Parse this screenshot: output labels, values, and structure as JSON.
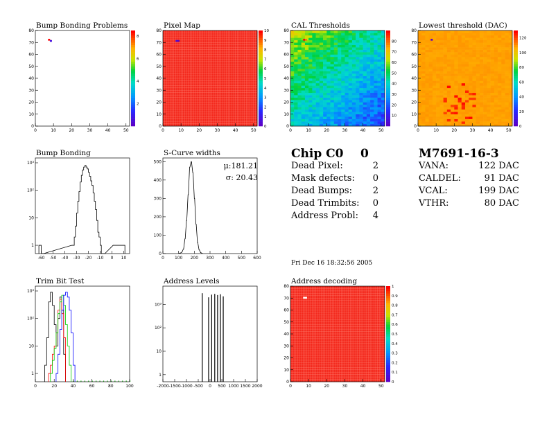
{
  "chart_data": [
    {
      "type": "heatmap",
      "title": "Bump Bonding Problems",
      "xlim": [
        0,
        52
      ],
      "ylim": [
        0,
        80
      ],
      "x_ticks": [
        "0",
        "10",
        "20",
        "30",
        "40",
        "50"
      ],
      "y_ticks": [
        "0",
        "10",
        "20",
        "30",
        "40",
        "50",
        "60",
        "70",
        "80"
      ],
      "z_ticks": [
        "2",
        "4",
        "6",
        "8"
      ],
      "z_range": [
        0,
        8.5
      ],
      "background": "empty",
      "cells": [
        [
          7,
          72,
          8.5
        ],
        [
          8,
          71,
          0.5
        ]
      ]
    },
    {
      "type": "heatmap",
      "title": "Pixel Map",
      "xlim": [
        0,
        52
      ],
      "ylim": [
        0,
        80
      ],
      "x_ticks": [
        "0",
        "10",
        "20",
        "30",
        "40",
        "50"
      ],
      "y_ticks": [
        "0",
        "10",
        "20",
        "30",
        "40",
        "50",
        "60",
        "70",
        "80"
      ],
      "z_ticks": [
        "0",
        "1",
        "2",
        "3",
        "4",
        "5",
        "6",
        "7",
        "8",
        "9",
        "10"
      ],
      "z_range": [
        0,
        10
      ],
      "background": "uniform-max",
      "cells": [
        [
          7,
          71,
          0.5
        ],
        [
          8,
          71,
          0
        ]
      ]
    },
    {
      "type": "heatmap",
      "title": "CAL Thresholds",
      "xlim": [
        0,
        52
      ],
      "ylim": [
        0,
        80
      ],
      "x_ticks": [
        "0",
        "10",
        "20",
        "30",
        "40",
        "50"
      ],
      "y_ticks": [
        "0",
        "10",
        "20",
        "30",
        "40",
        "50",
        "60",
        "70",
        "80"
      ],
      "z_ticks": [
        "10",
        "20",
        "30",
        "40",
        "50",
        "60",
        "70",
        "80"
      ],
      "z_range": [
        0,
        90
      ],
      "background": "gradient-top-left-high",
      "cells": [
        [
          7,
          72,
          90
        ],
        [
          8,
          72,
          80
        ]
      ]
    },
    {
      "type": "heatmap",
      "title": "Lowest threshold (DAC)",
      "xlim": [
        0,
        52
      ],
      "ylim": [
        0,
        80
      ],
      "x_ticks": [
        "0",
        "10",
        "20",
        "30",
        "40",
        "50"
      ],
      "y_ticks": [
        "0",
        "10",
        "20",
        "30",
        "40",
        "50",
        "60",
        "70",
        "80"
      ],
      "z_ticks": [
        "0",
        "20",
        "40",
        "60",
        "80",
        "100",
        "120"
      ],
      "z_range": [
        0,
        130
      ],
      "background": "uniform-orange-with-red-speckles",
      "cells": [
        [
          7,
          72,
          0
        ]
      ]
    },
    {
      "type": "line",
      "title": "Bump Bonding",
      "xlim": [
        -65,
        15
      ],
      "ylog": true,
      "ylim": [
        0.5,
        1500
      ],
      "x_ticks": [
        "-60",
        "-50",
        "-40",
        "-30",
        "-20",
        "-10",
        "0",
        "10"
      ],
      "y_ticks": [
        "1",
        "10",
        "10²",
        "10³"
      ],
      "step": true,
      "x": [
        -62,
        -60,
        -34,
        -32,
        -31,
        -30,
        -29,
        -28,
        -27,
        -26,
        -25,
        -24,
        -23,
        -22,
        -21,
        -20,
        -19,
        -18,
        -17,
        -16,
        -15,
        -14,
        -13,
        -12,
        -11,
        -10,
        -9,
        -8,
        1,
        3,
        5,
        7,
        9
      ],
      "y": [
        1,
        0,
        1,
        2,
        5,
        15,
        40,
        90,
        200,
        350,
        550,
        700,
        800,
        700,
        600,
        450,
        320,
        220,
        150,
        80,
        40,
        20,
        8,
        3,
        2,
        1,
        0,
        0,
        1,
        1,
        1,
        1,
        1
      ]
    },
    {
      "type": "line",
      "title": "S-Curve widths",
      "xlim": [
        0,
        600
      ],
      "ylim": [
        0,
        520
      ],
      "x_ticks": [
        "0",
        "100",
        "200",
        "300",
        "400",
        "500",
        "600"
      ],
      "y_ticks": [
        "0",
        "100",
        "200",
        "300",
        "400",
        "500"
      ],
      "stats": [
        "μ:181.21",
        "σ: 20.43"
      ],
      "step": true,
      "x": [
        100,
        110,
        120,
        130,
        140,
        150,
        160,
        170,
        180,
        190,
        200,
        210,
        220,
        230,
        240,
        250
      ],
      "y": [
        1,
        3,
        8,
        25,
        80,
        180,
        320,
        470,
        500,
        440,
        300,
        160,
        60,
        20,
        5,
        1
      ]
    },
    {
      "type": "line",
      "title": "Trim Bit Test",
      "xlim": [
        0,
        100
      ],
      "ylog": true,
      "ylim": [
        0.5,
        1500
      ],
      "x_ticks": [
        "0",
        "20",
        "40",
        "60",
        "80",
        "100"
      ],
      "y_ticks": [
        "1",
        "10",
        "10²",
        "10³"
      ],
      "series": [
        {
          "color": "#000000",
          "x": [
            10,
            12,
            14,
            16,
            18,
            20,
            22,
            24,
            26,
            28,
            30
          ],
          "y": [
            2,
            20,
            400,
            900,
            300,
            60,
            10,
            100,
            600,
            200,
            5
          ]
        },
        {
          "color": "#ff0000",
          "x": [
            14,
            16,
            18,
            20,
            22,
            24,
            26,
            28,
            30
          ],
          "y": [
            1,
            2,
            5,
            10,
            30,
            200,
            500,
            150,
            20
          ]
        },
        {
          "color": "#00cc00",
          "x": [
            16,
            18,
            20,
            22,
            24,
            26,
            28,
            30,
            32,
            34,
            36
          ],
          "y": [
            1,
            3,
            8,
            30,
            150,
            400,
            700,
            300,
            60,
            10,
            2
          ]
        },
        {
          "color": "#0000ff",
          "x": [
            22,
            24,
            26,
            28,
            30,
            32,
            34,
            36,
            38,
            40
          ],
          "y": [
            1,
            5,
            40,
            200,
            700,
            900,
            600,
            200,
            30,
            2
          ]
        }
      ],
      "baseline_dots": {
        "color": "#00aa00",
        "from": 40,
        "to": 100,
        "step": 4
      }
    },
    {
      "type": "bar",
      "title": "Address Levels",
      "xlim": [
        -2000,
        2000
      ],
      "ylog": true,
      "ylim": [
        0.5,
        6000
      ],
      "x_ticks": [
        "-2000",
        "-1500",
        "-1000",
        "-500",
        "0",
        "500",
        "1000",
        "1500",
        "2000"
      ],
      "y_ticks": [
        "1",
        "10",
        "10²",
        "10³"
      ],
      "x": [
        -330,
        -60,
        70,
        200,
        320,
        440,
        560
      ],
      "y": [
        3000,
        2000,
        2600,
        2800,
        2500,
        2700,
        2200
      ]
    },
    {
      "type": "heatmap",
      "title": "Address decoding",
      "xlim": [
        0,
        52
      ],
      "ylim": [
        0,
        80
      ],
      "x_ticks": [
        "0",
        "10",
        "20",
        "30",
        "40",
        "50"
      ],
      "y_ticks": [
        "0",
        "10",
        "20",
        "30",
        "40",
        "50",
        "60",
        "70",
        "80"
      ],
      "z_ticks": [
        "0",
        "0.1",
        "0.2",
        "0.3",
        "0.4",
        "0.5",
        "0.6",
        "0.7",
        "0.8",
        "0.9",
        "1"
      ],
      "z_range": [
        0,
        1
      ],
      "background": "uniform-max",
      "cells": [
        [
          7,
          70,
          -1
        ],
        [
          8,
          70,
          -1
        ]
      ]
    }
  ],
  "summary": {
    "chip_label": "Chip C0",
    "chip_value": "0",
    "rows": [
      {
        "label": "Dead Pixel:",
        "value": "2"
      },
      {
        "label": "Mask defects:",
        "value": "0"
      },
      {
        "label": "Dead Bumps:",
        "value": "2"
      },
      {
        "label": "Dead Trimbits:",
        "value": "0"
      },
      {
        "label": "Address Probl:",
        "value": "4"
      }
    ],
    "date": "Fri Dec 16 18:32:56 2005"
  },
  "module": {
    "name": "M7691-16-3",
    "rows": [
      {
        "label": "VANA:",
        "value": "122 DAC"
      },
      {
        "label": "CALDEL:",
        "value": "91 DAC"
      },
      {
        "label": "VCAL:",
        "value": "199 DAC"
      },
      {
        "label": "VTHR:",
        "value": "80 DAC"
      }
    ]
  }
}
